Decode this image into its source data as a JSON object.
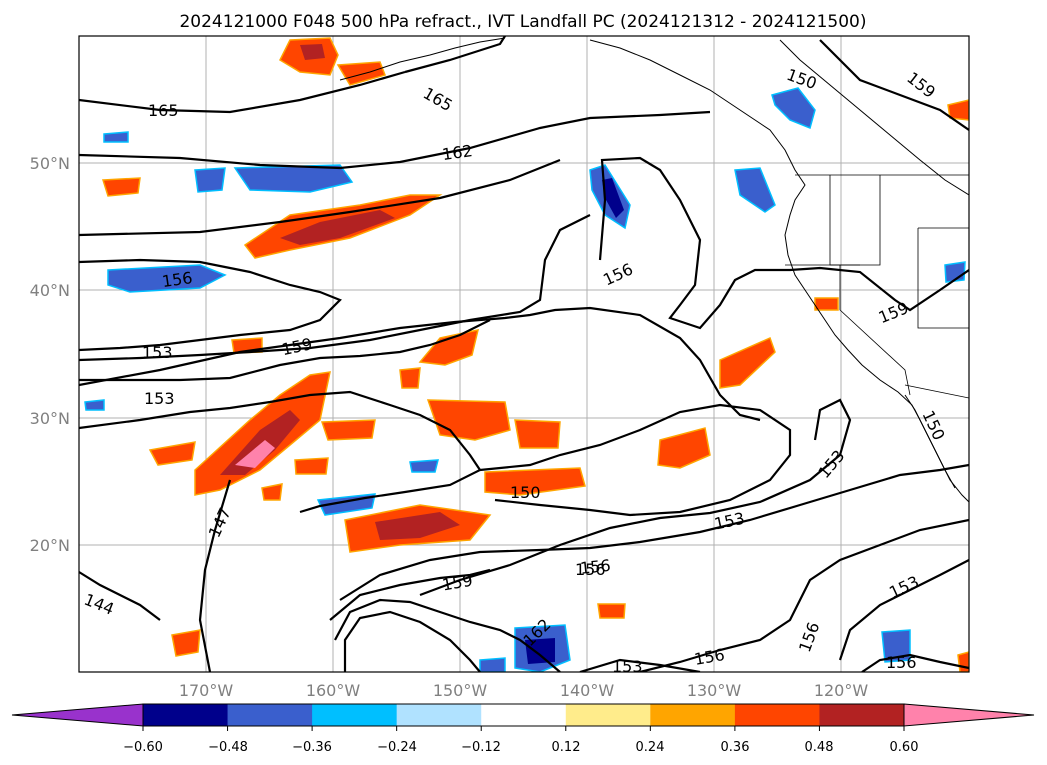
{
  "title": "2024121000 F048 500 hPa refract., IVT Landfall PC (2024121312 - 2024121500)",
  "lat_labels": [
    "50°N",
    "40°N",
    "30°N",
    "20°N"
  ],
  "lon_labels": [
    "170°W",
    "160°W",
    "150°W",
    "140°W",
    "130°W",
    "120°W"
  ],
  "contour_labels": [
    "165",
    "165",
    "162",
    "159",
    "156",
    "156",
    "153",
    "159",
    "153",
    "159",
    "150",
    "153",
    "147",
    "150",
    "156",
    "159",
    "153",
    "162",
    "144",
    "156",
    "156",
    "153",
    "153",
    "150",
    "156",
    "156"
  ],
  "colorbar": {
    "ticks": [
      "−0.60",
      "−0.48",
      "−0.36",
      "−0.24",
      "−0.12",
      "0.12",
      "0.24",
      "0.36",
      "0.48",
      "0.60"
    ],
    "colors": [
      "#9932cc",
      "#00008b",
      "#3a5fcd",
      "#00bfff",
      "#b0e2ff",
      "#ffffff",
      "#ffec8b",
      "#ffa500",
      "#ff4500",
      "#b22222",
      "#ff82ab"
    ]
  },
  "chart_data": {
    "type": "map",
    "title": "2024121000 F048 500 hPa refract., IVT Landfall PC (2024121312 - 2024121500)",
    "lat_range": [
      10,
      60
    ],
    "lon_range": [
      -180,
      -110
    ],
    "contour_values": [
      144,
      147,
      150,
      153,
      156,
      159,
      162,
      165
    ],
    "colorbar_bounds": [
      -0.6,
      -0.48,
      -0.36,
      -0.24,
      -0.12,
      0.12,
      0.24,
      0.36,
      0.48,
      0.6
    ]
  }
}
